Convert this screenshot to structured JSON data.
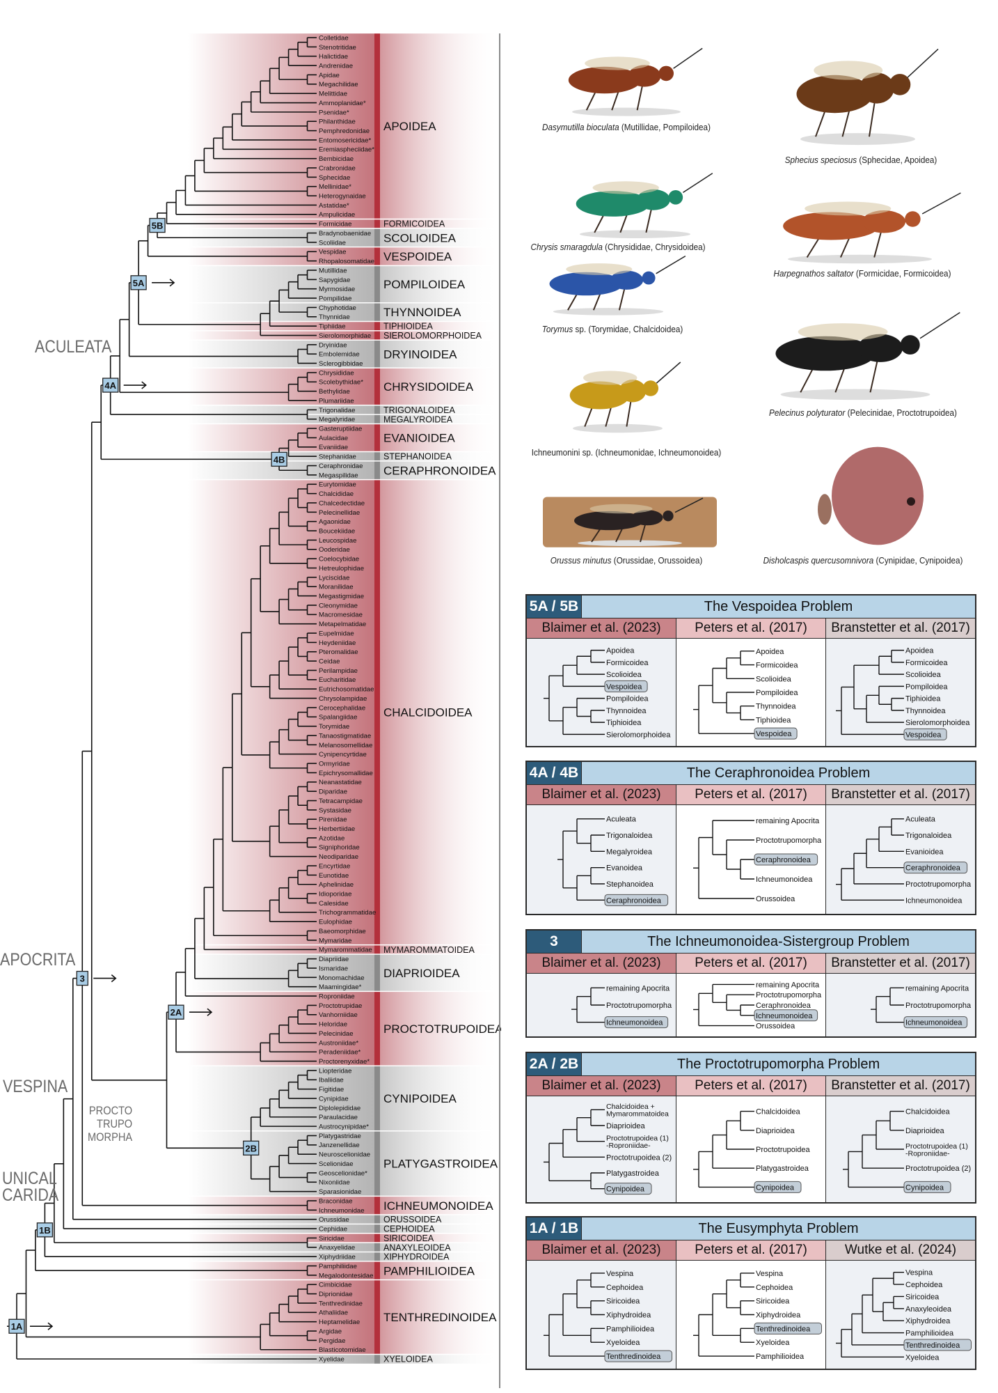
{
  "tree": {
    "groups": [
      {
        "name": "APOIDEA",
        "color": "red",
        "taxa": [
          "Colletidae",
          "Stenotritidae",
          "Halictidae",
          "Andrenidae",
          "Apidae",
          "Megachilidae",
          "Melittidae",
          "Ammoplanidae*",
          "Psenidae*",
          "Philanthidae",
          "Pemphredonidae",
          "Entomosericidae*",
          "Eremiaspheciidae*",
          "Bembicidae",
          "Crabronidae",
          "Sphecidae",
          "Mellinidae*",
          "Heterogynaidae",
          "Astatidae*",
          "Ampulicidae"
        ]
      },
      {
        "name": "FORMICOIDEA",
        "color": "red",
        "taxa": [
          "Formicidae"
        ]
      },
      {
        "name": "SCOLIOIDEA",
        "color": "grey",
        "taxa": [
          "Bradynobaenidae",
          "Scoliidae"
        ]
      },
      {
        "name": "VESPOIDEA",
        "color": "red",
        "taxa": [
          "Vespidae",
          "Rhopalosomatidae"
        ]
      },
      {
        "name": "POMPILOIDEA",
        "color": "grey",
        "taxa": [
          "Mutillidae",
          "Sapygidae",
          "Myrmosidae",
          "Pompilidae"
        ]
      },
      {
        "name": "THYNNOIDEA",
        "color": "grey",
        "taxa": [
          "Chyphotidae",
          "Thynnidae"
        ]
      },
      {
        "name": "TIPHIOIDEA",
        "color": "red",
        "taxa": [
          "Tiphiidae"
        ]
      },
      {
        "name": "SIEROLOMORPHOIDEA",
        "color": "red",
        "taxa": [
          "Sierolomorphidae"
        ]
      },
      {
        "name": "DRYINOIDEA",
        "color": "grey",
        "taxa": [
          "Dryinidae",
          "Embolemidae",
          "Sclerogibbidae"
        ]
      },
      {
        "name": "CHRYSIDOIDEA",
        "color": "red",
        "taxa": [
          "Chrysididae",
          "Scolebythidae*",
          "Bethylidae",
          "Plumariidae"
        ]
      },
      {
        "name": "TRIGONALOIDEA",
        "color": "grey",
        "taxa": [
          "Trigonalidae"
        ]
      },
      {
        "name": "MEGALYROIDEA",
        "color": "grey",
        "taxa": [
          "Megalyridae"
        ]
      },
      {
        "name": "EVANIOIDEA",
        "color": "red",
        "taxa": [
          "Gasteruptiidae",
          "Aulacidae",
          "Evaniidae"
        ]
      },
      {
        "name": "STEPHANOIDEA",
        "color": "grey",
        "taxa": [
          "Stephanidae"
        ]
      },
      {
        "name": "CERAPHRONOIDEA",
        "color": "grey",
        "taxa": [
          "Ceraphronidae",
          "Megaspilidae"
        ]
      },
      {
        "name": "CHALCIDOIDEA",
        "color": "red",
        "taxa": [
          "Eurytomidae",
          "Chalcididae",
          "Chalcedectidae",
          "Pelecinellidae",
          "Agaonidae",
          "Boucekiidae",
          "Leucospidae",
          "Ooderidae",
          "Coelocybidae",
          "Hetreulophidae",
          "Lyciscidae",
          "Moranilidae",
          "Megastigmidae",
          "Cleonymidae",
          "Macromesidae",
          "Metapelmatidae",
          "Eupelmidae",
          "Heydeniidae",
          "Pteromalidae",
          "Ceidae",
          "Perilampidae",
          "Eucharitidae",
          "Eutrichosomatidae",
          "Chrysolampidae",
          "Cerocephalidae",
          "Spalangiidae",
          "Torymidae",
          "Tanaostigmatidae",
          "Melanosomellidae",
          "Cynipencyrtidae",
          "Ormyridae",
          "Epichrysomallidae",
          "Neanastatidae",
          "Diparidae",
          "Tetracampidae",
          "Systasidae",
          "Pirenidae",
          "Herbertiidae",
          "Azotidae",
          "Signiphoridae",
          "Neodiparidae",
          "Encyrtidae",
          "Eunotidae",
          "Aphelinidae",
          "Idioporidae",
          "Calesidae",
          "Trichogrammatidae",
          "Eulophidae",
          "Baeomorphidae",
          "Mymaridae"
        ]
      },
      {
        "name": "MYMAROMMATOIDEA",
        "color": "red",
        "taxa": [
          "Mymarommatidae"
        ]
      },
      {
        "name": "DIAPRIOIDEA",
        "color": "grey",
        "taxa": [
          "Diapriidae",
          "Ismaridae",
          "Monomachidae",
          "Maamingidae*"
        ]
      },
      {
        "name": "PROCTOTRUPOIDEA",
        "mark": "†",
        "color": "red",
        "taxa": [
          "Roproniidae",
          "Proctotrupidae",
          "Vanhorniidae",
          "Heloridae",
          "Pelecinidae",
          "Austroniidae*",
          "Peradeniidae*",
          "Proctorenyxidae*"
        ]
      },
      {
        "name": "CYNIPOIDEA",
        "color": "grey",
        "taxa": [
          "Liopteridae",
          "Ibaliidae",
          "Figitidae",
          "Cynipidae",
          "Diplolepididae",
          "Paraulacidae",
          "Austrocynipidae*"
        ]
      },
      {
        "name": "PLATYGASTROIDEA",
        "color": "grey",
        "taxa": [
          "Platygastridae",
          "Janzenellidae",
          "Neuroscelionidae",
          "Scelionidae",
          "Geoscelionidae*",
          "Nixoniidae",
          "Sparasionidae"
        ]
      },
      {
        "name": "ICHNEUMONOIDEA",
        "color": "red",
        "taxa": [
          "Braconidae",
          "Ichneumonidae"
        ]
      },
      {
        "name": "ORUSSOIDEA",
        "color": "grey",
        "taxa": [
          "Orussidae"
        ]
      },
      {
        "name": "CEPHOIDEA",
        "color": "grey",
        "taxa": [
          "Cephidae"
        ]
      },
      {
        "name": "SIRICOIDEA",
        "color": "red",
        "taxa": [
          "Siricidae"
        ]
      },
      {
        "name": "ANAXYLEOIDEA",
        "color": "grey",
        "taxa": [
          "Anaxyelidae"
        ]
      },
      {
        "name": "XIPHYDROIDEA",
        "color": "grey",
        "taxa": [
          "Xiphydriidae"
        ]
      },
      {
        "name": "PAMPHILIOIDEA",
        "color": "red",
        "taxa": [
          "Pamphiliidae",
          "Megalodontesidae"
        ]
      },
      {
        "name": "TENTHREDINOIDEA",
        "color": "red",
        "taxa": [
          "Cimbicidae",
          "Diprionidae",
          "Tenthredinidae",
          "Athaliidae",
          "Heptamelidae",
          "Argidae",
          "Pergidae",
          "Blasticotomidae"
        ]
      },
      {
        "name": "XYELOIDEA",
        "color": "grey",
        "taxa": [
          "Xyelidae"
        ]
      }
    ],
    "node_labels": [
      {
        "label": "5B",
        "arrow": false
      },
      {
        "label": "5A",
        "arrow": true
      },
      {
        "label": "4A",
        "arrow": true
      },
      {
        "label": "4B",
        "arrow": false
      },
      {
        "label": "3",
        "arrow": true
      },
      {
        "label": "2A",
        "arrow": true
      },
      {
        "label": "2B",
        "arrow": false
      },
      {
        "label": "1B",
        "arrow": false
      },
      {
        "label": "1A",
        "arrow": true
      }
    ],
    "clade_labels": {
      "aculeata": "ACULEATA",
      "apocrita": "APOCRITA",
      "vespina": "VESPINA",
      "unicalcarida": "UNICAL\nCARIDA",
      "proctotrupomorpha": "PROCTO\nTRUPO\nMORPHA"
    }
  },
  "photos": [
    {
      "genus": "Dasymutilla bioculata",
      "rest": "(Mutillidae, Pompiloidea)",
      "color": "#8a3a1c"
    },
    {
      "genus": "Sphecius speciosus",
      "rest": "(Sphecidae, Apoidea)",
      "color": "#6b3a18"
    },
    {
      "genus": "Chrysis smaragdula",
      "rest": "(Chrysididae, Chrysidoidea)",
      "color": "#1f8a6a"
    },
    {
      "genus": "Harpegnathos saltator",
      "rest": "(Formicidae, Formicoidea)",
      "color": "#b2532a"
    },
    {
      "genus": "Torymus",
      "rest": "sp. (Torymidae, Chalcidoidea)",
      "color": "#2b55a8"
    },
    {
      "genus": "Pelecinus polyturator",
      "rest": "(Pelecinidae, Proctotrupoidea)",
      "color": "#1c1c1c"
    },
    {
      "genus": "",
      "rest": "Ichneumonini sp. (Ichneumonidae, Ichneumonoidea)",
      "color": "#c79a1a"
    },
    {
      "genus": "Orussus minutus",
      "rest": "(Orussidae, Orussoidea)",
      "color": "#2a2222"
    },
    {
      "genus": "Disholcaspis quercusomnivora",
      "rest": "(Cynipidae, Cynipoidea)",
      "color": "#b06a6a"
    }
  ],
  "panels": [
    {
      "code": "5A / 5B",
      "title": "The Vespoidea Problem",
      "studies": [
        {
          "author": "Blaimer et al. (2023)",
          "tips": [
            "Apoidea",
            "Formicoidea",
            "Scolioidea",
            "Vespoidea",
            "Pompiloidea",
            "Thynnoidea",
            "Tiphioidea",
            "Sierolomorphoidea"
          ],
          "topology": [
            [
              [
                [
                  0,
                  1
                ],
                2
              ],
              3
            ],
            [
              [
                4,
                [
                  5,
                  6
                ]
              ],
              7
            ]
          ],
          "highlight": 3
        },
        {
          "author": "Peters et al. (2017)",
          "tips": [
            "Apoidea",
            "Formicoidea",
            "Scolioidea",
            "Pompiloidea",
            "Thynnoidea",
            "Tiphioidea",
            "Vespoidea"
          ],
          "topology": [
            [
              [
                [
                  0,
                  1
                ],
                2
              ],
              [
                3,
                [
                  4,
                  5
                ]
              ]
            ],
            6
          ],
          "highlight": 6
        },
        {
          "author": "Branstetter et al. (2017)",
          "tips": [
            "Apoidea",
            "Formicoidea",
            "Scolioidea",
            "Pompiloidea",
            "Tiphioidea",
            "Thynnoidea",
            "Sierolomorphoidea",
            "Vespoidea"
          ],
          "topology": [
            [
              [
                [
                  0,
                  1
                ],
                2
              ],
              [
                [
                  3,
                  [
                    4,
                    5
                  ]
                ],
                6
              ]
            ],
            7
          ],
          "highlight": 7
        }
      ]
    },
    {
      "code": "4A / 4B",
      "title": "The Ceraphronoidea Problem",
      "studies": [
        {
          "author": "Blaimer et al. (2023)",
          "tips": [
            "Aculeata",
            "Trigonaloidea",
            "Megalyroidea",
            "Evanoidea",
            "Stephanoidea",
            "Ceraphronoidea"
          ],
          "topology": [
            [
              0,
              [
                1,
                2
              ]
            ],
            [
              [
                3,
                4
              ],
              5
            ]
          ],
          "highlight": 5
        },
        {
          "author": "Peters et al. (2017)",
          "tips": [
            "remaining Apocrita",
            "Proctotrupomorpha",
            "Ceraphronoidea",
            "Ichneumonoidea",
            "Orussoidea"
          ],
          "topology": [
            [
              0,
              [
                1,
                [
                  2,
                  3
                ]
              ]
            ],
            4
          ],
          "highlight": 2
        },
        {
          "author": "Branstetter et al. (2017)",
          "tips": [
            "Aculeata",
            "Trigonaloidea",
            "Evanioidea",
            "Ceraphronoidea",
            "Proctotrupomorpha",
            "Ichneumonoidea"
          ],
          "topology": [
            [
              [
                [
                  [
                    0,
                    1
                  ],
                  2
                ],
                3
              ],
              4
            ],
            5
          ],
          "highlight": 3
        }
      ]
    },
    {
      "code": "3",
      "title": "The Ichneumonoidea-Sistergroup Problem",
      "studies": [
        {
          "author": "Blaimer et al. (2023)",
          "tips": [
            "remaining Apocrita",
            "Proctotrupomorpha",
            "Ichneumonoidea"
          ],
          "topology": [
            [
              0,
              1
            ],
            2
          ],
          "highlight": 2
        },
        {
          "author": "Peters et al. (2017)",
          "tips": [
            "remaining Apocrita",
            "Proctotrupomorpha",
            "Ceraphronoidea",
            "Ichneumonoidea",
            "Orussoidea"
          ],
          "topology": [
            [
              0,
              [
                1,
                [
                  2,
                  3
                ]
              ]
            ],
            4
          ],
          "highlight": 3
        },
        {
          "author": "Branstetter et al. (2017)",
          "tips": [
            "remaining Apocrita",
            "Proctotrupomorpha",
            "Ichneumonoidea"
          ],
          "topology": [
            [
              0,
              1
            ],
            2
          ],
          "highlight": 2
        }
      ]
    },
    {
      "code": "2A / 2B",
      "title": "The Proctotrupomorpha Problem",
      "studies": [
        {
          "author": "Blaimer et al. (2023)",
          "tips": [
            "Chalcidoidea +\nMymarommatoidea",
            "Diaprioidea",
            "Proctotrupoidea (1)\n-Roproniidae-",
            "Proctotrupoidea (2)",
            "Platygastroidea",
            "Cynipoidea"
          ],
          "topology": [
            [
              [
                [
                  0,
                  1
                ],
                2
              ],
              3
            ],
            [
              4,
              5
            ]
          ],
          "highlight": 5
        },
        {
          "author": "Peters et al. (2017)",
          "tips": [
            "Chalcidoidea",
            "Diaprioidea",
            "Proctotrupoidea",
            "Platygastroidea",
            "Cynipoidea"
          ],
          "topology": [
            [
              [
                [
                  0,
                  1
                ],
                2
              ],
              3
            ],
            4
          ],
          "highlight": 4
        },
        {
          "author": "Branstetter et al. (2017)",
          "tips": [
            "Chalcidoidea",
            "Diaprioidea",
            "Proctotrupoidea (1)\n-Roproniidae-",
            "Proctotrupoidea (2)",
            "Cynipoidea"
          ],
          "topology": [
            [
              [
                [
                  0,
                  1
                ],
                2
              ],
              3
            ],
            4
          ],
          "highlight": 4
        }
      ]
    },
    {
      "code": "1A / 1B",
      "title": "The Eusymphyta Problem",
      "studies": [
        {
          "author": "Blaimer et al. (2023)",
          "tips": [
            "Vespina",
            "Cephoidea",
            "Siricoidea",
            "Xiphydroidea",
            "Pamphilioidea",
            "Xyeloidea",
            "Tenthredinoidea"
          ],
          "topology": [
            [
              [
                [
                  0,
                  1
                ],
                [
                  2,
                  3
                ]
              ],
              [
                4,
                5
              ]
            ],
            6
          ],
          "highlight": 6
        },
        {
          "author": "Peters et al. (2017)",
          "tips": [
            "Vespina",
            "Cephoidea",
            "Siricoidea",
            "Xiphydroidea",
            "Tenthredinoidea",
            "Xyeloidea",
            "Pamphilioidea"
          ],
          "topology": [
            [
              [
                [
                  0,
                  1
                ],
                [
                  2,
                  3
                ]
              ],
              [
                4,
                5
              ]
            ],
            6
          ],
          "highlight": 4
        },
        {
          "author": "Wutke et al. (2024)",
          "tips": [
            "Vespina",
            "Cephoidea",
            "Siricoidea",
            "Anaxyleoidea",
            "Xiphydroidea",
            "Pamphilioidea",
            "Tenthredinoidea",
            "Xyeloidea"
          ],
          "topology": [
            [
              [
                [
                  [
                    0,
                    1
                  ],
                  [
                    [
                      2,
                      3
                    ],
                    4
                  ]
                ],
                5
              ],
              6
            ],
            7
          ],
          "highlight": 6
        }
      ]
    }
  ],
  "colors": {
    "red_band": "#c4747c",
    "red_bar": "#b3303b",
    "grey_band": "#b4b4b4",
    "grey_bar": "#8a8a8a",
    "node_box": "#a9cde6",
    "panel_code": "#2d5b7a",
    "panel_title": "#b8d4e7",
    "author_bg": [
      "#c98489",
      "#e9c0c2",
      "#d9cdcd"
    ],
    "body_bg": [
      "#eef1f5",
      "#ffffff",
      "#eef1f5"
    ],
    "highlight_box": "#c3ced8"
  }
}
